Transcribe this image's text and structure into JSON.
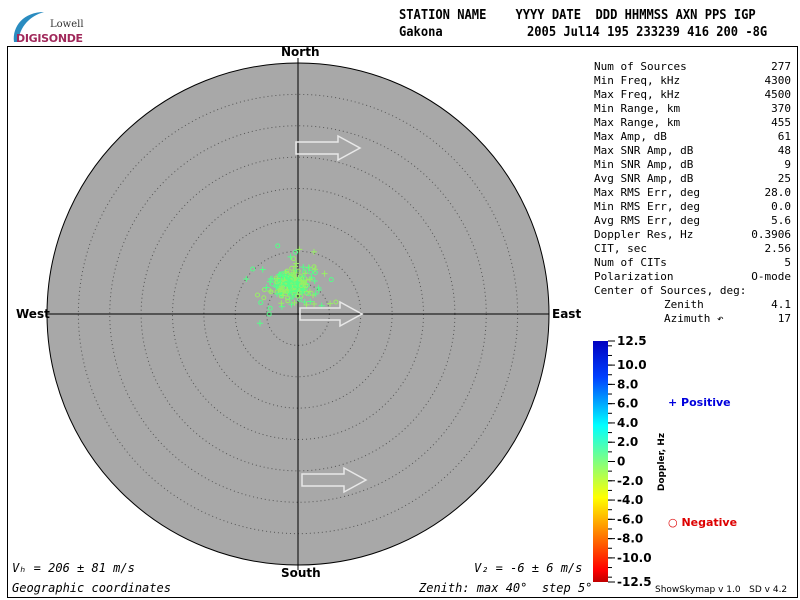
{
  "header": {
    "col_labels": "STATION NAME    YYYY DATE  DDD HHMMSS AXN PPS IGP",
    "station": "Gakona",
    "values": "2005 Jul14 195 233239 416 200 -8G"
  },
  "logo": {
    "line1": "Lowell",
    "line2": "DIGISONDE"
  },
  "stats": [
    {
      "label": "Num of Sources",
      "value": "277"
    },
    {
      "label": "Min Freq, kHz",
      "value": "4300"
    },
    {
      "label": "Max Freq, kHz",
      "value": "4500"
    },
    {
      "label": "Min Range, km",
      "value": "370"
    },
    {
      "label": "Max Range, km",
      "value": "455"
    },
    {
      "label": "Max Amp, dB",
      "value": "61"
    },
    {
      "label": "Max SNR Amp, dB",
      "value": "48"
    },
    {
      "label": "Min SNR Amp, dB",
      "value": "9"
    },
    {
      "label": "Avg SNR Amp, dB",
      "value": "25"
    },
    {
      "label": "Max RMS Err, deg",
      "value": "28.0"
    },
    {
      "label": "Min RMS Err, deg",
      "value": "0.0"
    },
    {
      "label": "Avg RMS Err, deg",
      "value": "5.6"
    },
    {
      "label": "Doppler Res, Hz",
      "value": "0.3906"
    },
    {
      "label": "CIT, sec",
      "value": "2.56"
    },
    {
      "label": "Num of CITs",
      "value": "5"
    },
    {
      "label": "Polarization",
      "value": "O-mode"
    }
  ],
  "center": {
    "title": "Center of Sources, deg:",
    "zenith_label": "Zenith",
    "zenith": "4.1",
    "azimuth_label": "Azimuth ↶",
    "azimuth": "17"
  },
  "directions": {
    "north": "North",
    "south": "South",
    "east": "East",
    "west": "West"
  },
  "footer": {
    "vh": "Vₕ = 206 ± 81 m/s",
    "vz": "V₂ = -6 ± 6 m/s",
    "coords": "Geographic coordinates",
    "zenith": "Zenith: max 40°  step 5°",
    "version": "ShowSkymap v 1.0   SD v 4.2"
  },
  "chart_data": {
    "type": "scatter",
    "projection": "polar sky map",
    "zenith_max_deg": 40,
    "zenith_step_deg": 5,
    "num_sources": 277,
    "center_zenith_deg": 4.1,
    "center_azimuth_deg": 17,
    "plot_background": "#a8a8a8",
    "colorbar": {
      "label": "Doppler, Hz",
      "ticks": [
        "12.5",
        "10.0",
        "8.0",
        "6.0",
        "4.0",
        "2.0",
        "0",
        "-2.0",
        "-4.0",
        "-6.0",
        "-8.0",
        "-10.0",
        "-12.5"
      ],
      "range": [
        -12.5,
        12.5
      ]
    },
    "legend": [
      {
        "marker": "+",
        "label": "Positive",
        "color": "#0000dd"
      },
      {
        "marker": "o",
        "label": "Negative",
        "color": "#dd0000"
      }
    ],
    "point_color_range": [
      "#55ff88",
      "#99ee66"
    ]
  }
}
